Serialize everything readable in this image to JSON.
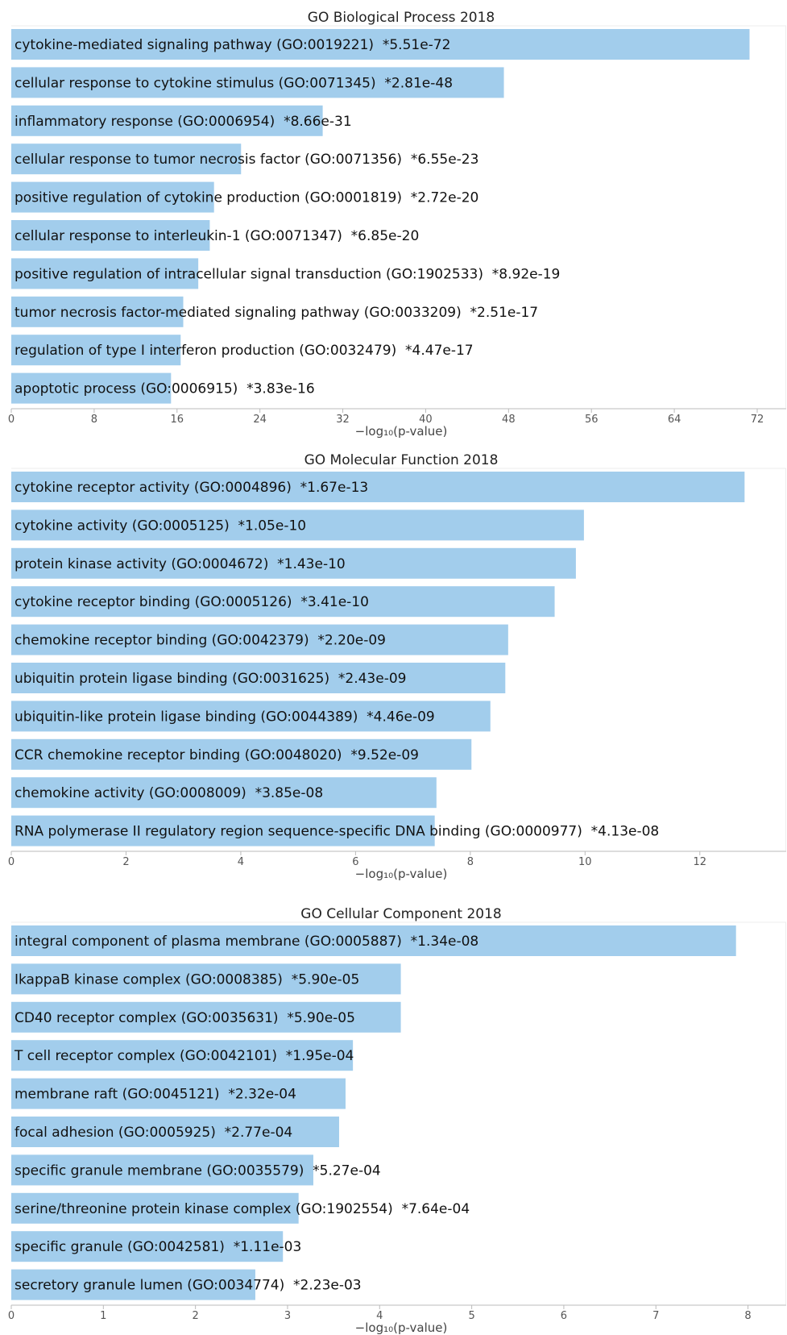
{
  "chart_data": [
    {
      "type": "bar",
      "orientation": "horizontal",
      "title": "GO Biological Process 2018",
      "xlabel": "−log₁₀(p-value)",
      "xlim": [
        0,
        72
      ],
      "ticks": [
        0,
        8,
        16,
        24,
        32,
        40,
        48,
        56,
        64,
        72
      ],
      "bar_color": "#a2cdec",
      "categories": [
        "cytokine-mediated signaling pathway (GO:0019221)  *5.51e-72",
        "cellular response to cytokine stimulus (GO:0071345)  *2.81e-48",
        "inflammatory response (GO:0006954)  *8.66e-31",
        "cellular response to tumor necrosis factor (GO:0071356)  *6.55e-23",
        "positive regulation of cytokine production (GO:0001819)  *2.72e-20",
        "cellular response to interleukin-1 (GO:0071347)  *6.85e-20",
        "positive regulation of intracellular signal transduction (GO:1902533)  *8.92e-19",
        "tumor necrosis factor-mediated signaling pathway (GO:0033209)  *2.51e-17",
        "regulation of type I interferon production (GO:0032479)  *4.47e-17",
        "apoptotic process (GO:0006915)  *3.83e-16"
      ],
      "values": [
        71.26,
        47.55,
        30.06,
        22.18,
        19.57,
        19.16,
        18.05,
        16.6,
        16.35,
        15.42
      ]
    },
    {
      "type": "bar",
      "orientation": "horizontal",
      "title": "GO Molecular Function 2018",
      "xlabel": "−log₁₀(p-value)",
      "xlim": [
        0,
        13
      ],
      "ticks": [
        0,
        2,
        4,
        6,
        8,
        10,
        12
      ],
      "bar_color": "#a2cdec",
      "categories": [
        "cytokine receptor activity (GO:0004896)  *1.67e-13",
        "cytokine activity (GO:0005125)  *1.05e-10",
        "protein kinase activity (GO:0004672)  *1.43e-10",
        "cytokine receptor binding (GO:0005126)  *3.41e-10",
        "chemokine receptor binding (GO:0042379)  *2.20e-09",
        "ubiquitin protein ligase binding (GO:0031625)  *2.43e-09",
        "ubiquitin-like protein ligase binding (GO:0044389)  *4.46e-09",
        "CCR chemokine receptor binding (GO:0048020)  *9.52e-09",
        "chemokine activity (GO:0008009)  *3.85e-08",
        "RNA polymerase II regulatory region sequence-specific DNA binding (GO:0000977)  *4.13e-08"
      ],
      "values": [
        12.78,
        9.98,
        9.84,
        9.47,
        8.66,
        8.61,
        8.35,
        8.02,
        7.41,
        7.38
      ]
    },
    {
      "type": "bar",
      "orientation": "horizontal",
      "title": "GO Cellular Component 2018",
      "xlabel": "−log₁₀(p-value)",
      "xlim": [
        0,
        8.1
      ],
      "ticks": [
        0,
        1,
        2,
        3,
        4,
        5,
        6,
        7,
        8
      ],
      "bar_color": "#a2cdec",
      "categories": [
        "integral component of plasma membrane (GO:0005887)  *1.34e-08",
        "IkappaB kinase complex (GO:0008385)  *5.90e-05",
        "CD40 receptor complex (GO:0035631)  *5.90e-05",
        "T cell receptor complex (GO:0042101)  *1.95e-04",
        "membrane raft (GO:0045121)  *2.32e-04",
        "focal adhesion (GO:0005925)  *2.77e-04",
        "specific granule membrane (GO:0035579)  *5.27e-04",
        "serine/threonine protein kinase complex (GO:1902554)  *7.64e-04",
        "specific granule (GO:0042581)  *1.11e-03",
        "secretory granule lumen (GO:0034774)  *2.23e-03"
      ],
      "values": [
        7.87,
        4.23,
        4.23,
        3.71,
        3.63,
        3.56,
        3.28,
        3.12,
        2.95,
        2.65
      ]
    }
  ]
}
